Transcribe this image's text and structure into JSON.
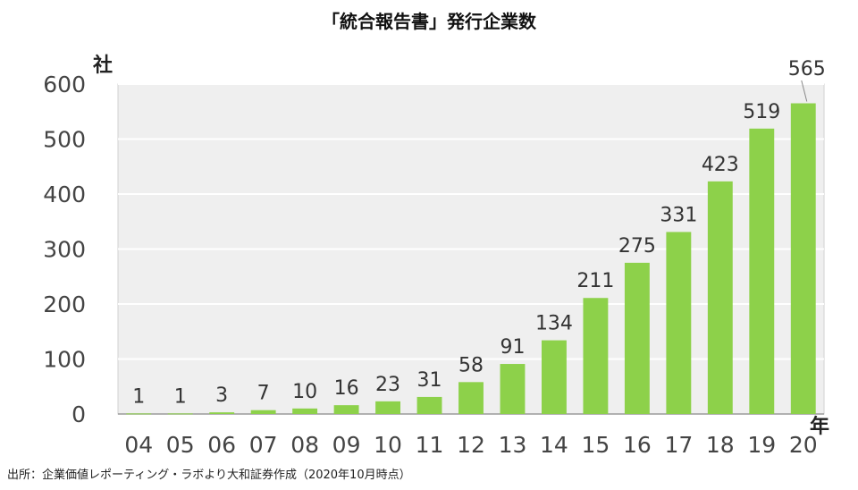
{
  "title": "「統合報告書」発行企業数",
  "source": "出所：企業価値レポーティング・ラボより大和証券作成（2020年10月時点）",
  "chart_data": {
    "type": "bar",
    "title": "「統合報告書」発行企業数",
    "ylabel": "社",
    "xlabel": "年",
    "categories": [
      "04",
      "05",
      "06",
      "07",
      "08",
      "09",
      "10",
      "11",
      "12",
      "13",
      "14",
      "15",
      "16",
      "17",
      "18",
      "19",
      "20"
    ],
    "values": [
      1,
      1,
      3,
      7,
      10,
      16,
      23,
      31,
      58,
      91,
      134,
      211,
      275,
      331,
      423,
      519,
      565
    ],
    "yticks": [
      0,
      100,
      200,
      300,
      400,
      500,
      600
    ],
    "ylim": [
      0,
      600
    ],
    "grid": true,
    "bar_color": "#8dd14a",
    "plot_background": "#efefef"
  }
}
